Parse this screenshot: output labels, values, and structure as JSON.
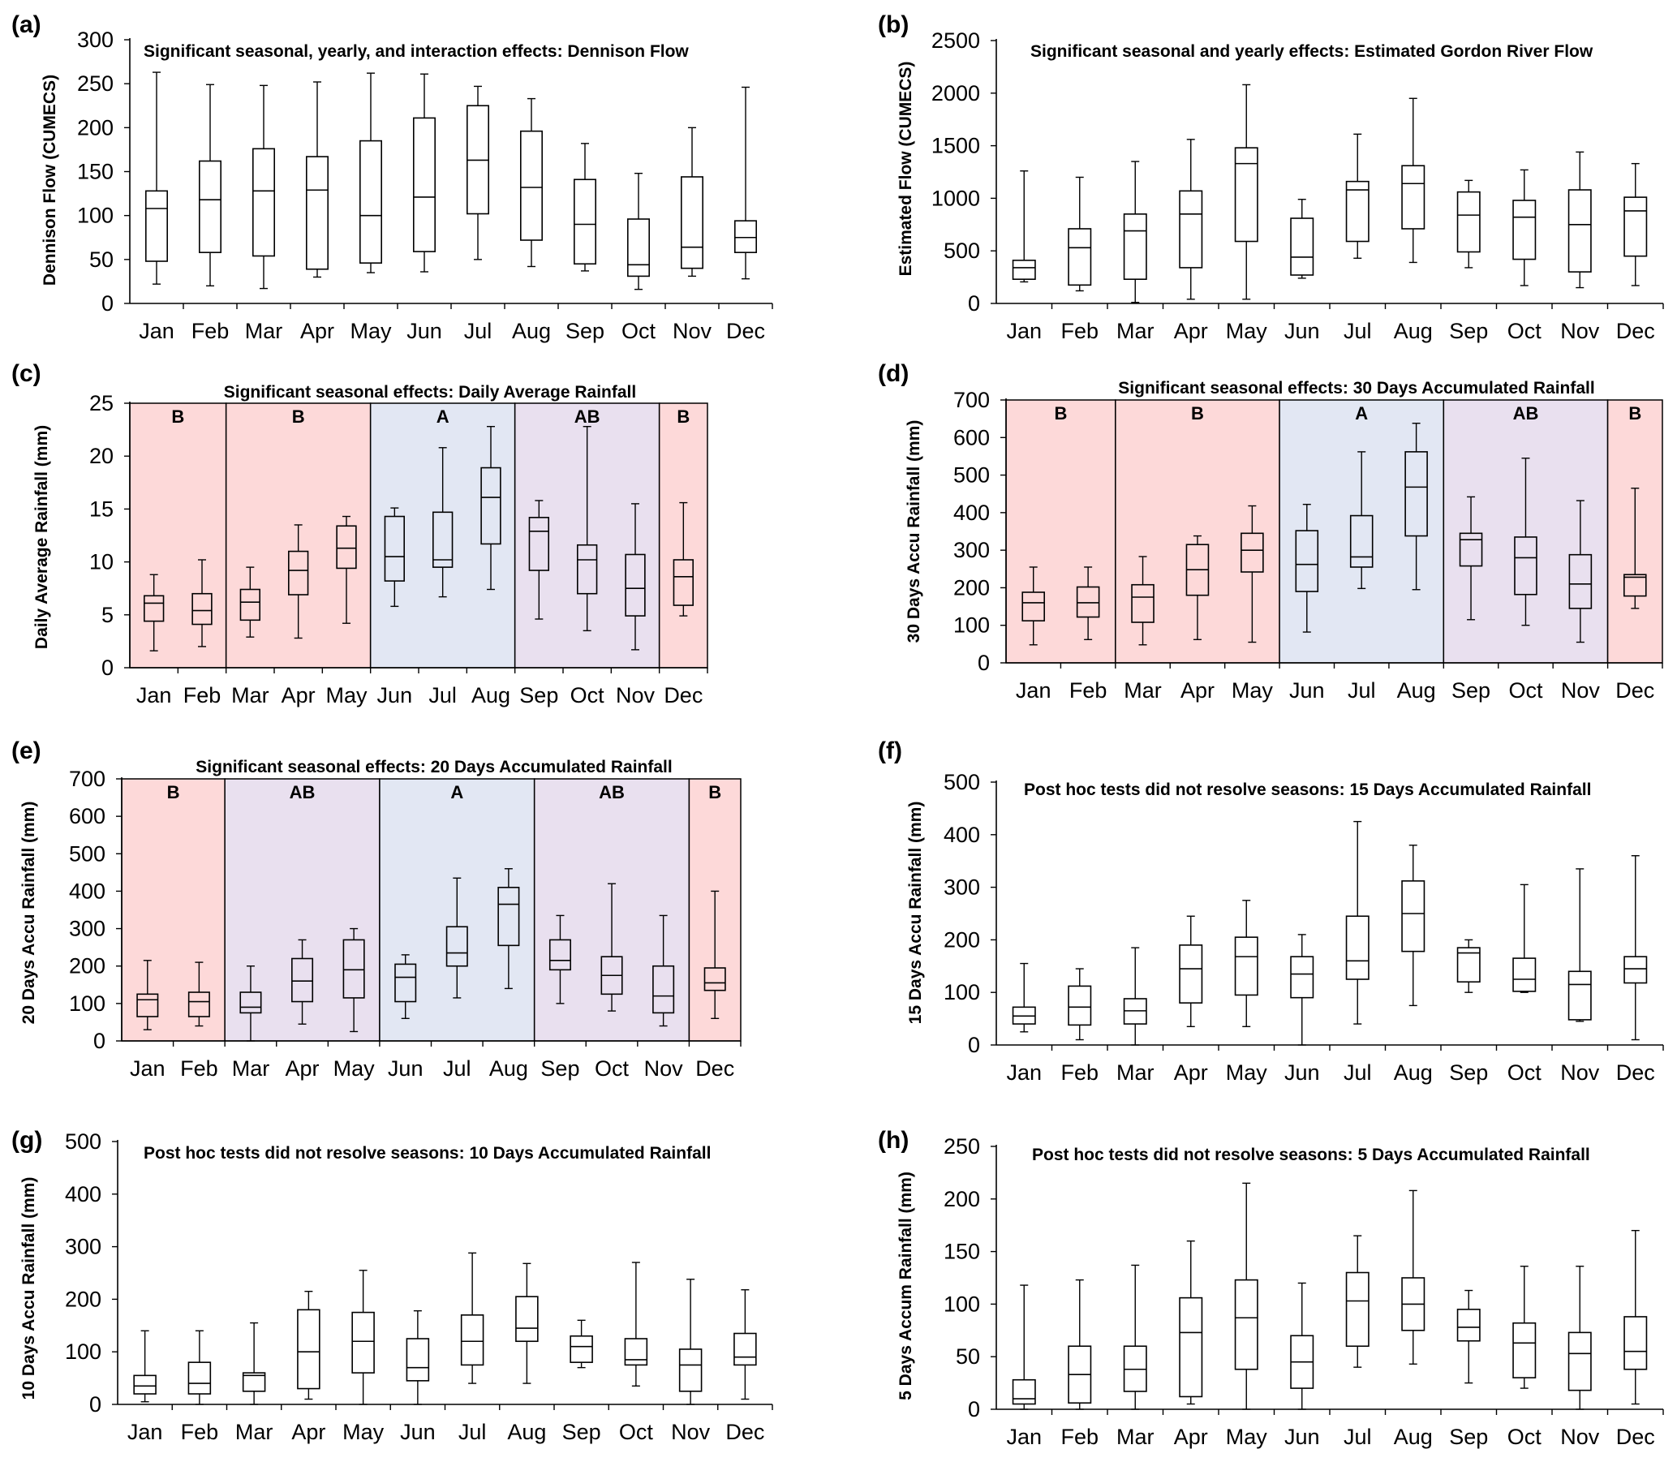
{
  "figure": {
    "background": "#ffffff"
  },
  "season_colors": {
    "red": "#fdd9d9",
    "blue": "#e2e7f3",
    "purple": "#e9e0ef"
  },
  "chart_data": [
    {
      "id": "a",
      "type": "box",
      "panel_letter": "(a)",
      "title": "Significant seasonal, yearly, and interaction effects: Dennison Flow",
      "ylabel": "Dennison Flow (CUMECS)",
      "ylim": [
        0,
        300
      ],
      "yticks": [
        "0",
        "50",
        "100",
        "150",
        "200",
        "250",
        "300"
      ],
      "categories": [
        "Jan",
        "Feb",
        "Mar",
        "Apr",
        "May",
        "Jun",
        "Jul",
        "Aug",
        "Sep",
        "Oct",
        "Nov",
        "Dec"
      ],
      "boxes": [
        [
          22,
          48,
          108,
          128,
          263
        ],
        [
          20,
          58,
          118,
          162,
          249
        ],
        [
          17,
          54,
          128,
          176,
          248
        ],
        [
          30,
          39,
          129,
          167,
          252
        ],
        [
          35,
          46,
          100,
          185,
          262
        ],
        [
          36,
          59,
          121,
          211,
          261
        ],
        [
          50,
          102,
          163,
          225,
          247
        ],
        [
          42,
          72,
          132,
          196,
          233
        ],
        [
          37,
          45,
          90,
          141,
          182
        ],
        [
          16,
          31,
          44,
          96,
          148
        ],
        [
          31,
          40,
          64,
          144,
          200
        ],
        [
          28,
          58,
          75,
          94,
          246
        ]
      ],
      "seasons": []
    },
    {
      "id": "b",
      "type": "box",
      "panel_letter": "(b)",
      "title": "Significant seasonal and yearly effects: Estimated Gordon River Flow",
      "ylabel": "Estimated Flow (CUMECS)",
      "ylim": [
        0,
        2500
      ],
      "yticks": [
        "0",
        "500",
        "1000",
        "1500",
        "2000",
        "2500"
      ],
      "categories": [
        "Jan",
        "Feb",
        "Mar",
        "Apr",
        "May",
        "Jun",
        "Jul",
        "Aug",
        "Sep",
        "Oct",
        "Nov",
        "Dec"
      ],
      "boxes": [
        [
          205,
          230,
          340,
          410,
          1260
        ],
        [
          120,
          175,
          530,
          710,
          1200
        ],
        [
          10,
          230,
          690,
          850,
          1350
        ],
        [
          40,
          340,
          850,
          1070,
          1560
        ],
        [
          40,
          590,
          1330,
          1480,
          2080
        ],
        [
          240,
          270,
          440,
          810,
          990
        ],
        [
          430,
          590,
          1080,
          1160,
          1610
        ],
        [
          390,
          710,
          1140,
          1310,
          1950
        ],
        [
          340,
          490,
          840,
          1060,
          1170
        ],
        [
          170,
          420,
          820,
          980,
          1270
        ],
        [
          150,
          300,
          750,
          1080,
          1440
        ],
        [
          170,
          450,
          880,
          1010,
          1330
        ]
      ],
      "seasons": []
    },
    {
      "id": "c",
      "type": "box",
      "panel_letter": "(c)",
      "title": "Significant seasonal effects: Daily Average Rainfall",
      "ylabel": "Daily Average Rainfall (mm)",
      "ylim": [
        0,
        25
      ],
      "yticks": [
        "0",
        "5",
        "10",
        "15",
        "20",
        "25"
      ],
      "categories": [
        "Jan",
        "Feb",
        "Mar",
        "Apr",
        "May",
        "Jun",
        "Jul",
        "Aug",
        "Sep",
        "Oct",
        "Nov",
        "Dec"
      ],
      "boxes": [
        [
          1.6,
          4.4,
          6.1,
          6.8,
          8.8
        ],
        [
          2.0,
          4.1,
          5.4,
          7.0,
          10.2
        ],
        [
          2.9,
          4.5,
          6.2,
          7.4,
          9.5
        ],
        [
          2.8,
          6.9,
          9.2,
          11.0,
          13.5
        ],
        [
          4.2,
          9.4,
          11.3,
          13.4,
          14.3
        ],
        [
          5.8,
          8.2,
          10.5,
          14.3,
          15.1
        ],
        [
          6.7,
          9.5,
          10.2,
          14.7,
          20.8
        ],
        [
          7.4,
          11.7,
          16.1,
          18.9,
          22.8
        ],
        [
          4.6,
          9.2,
          12.9,
          14.2,
          15.8
        ],
        [
          3.5,
          7.0,
          10.2,
          11.6,
          22.8
        ],
        [
          1.7,
          4.9,
          7.5,
          10.7,
          15.5
        ],
        [
          4.9,
          5.9,
          8.6,
          10.2,
          15.6
        ]
      ],
      "seasons": [
        {
          "start": 0,
          "end": 2,
          "label": "B",
          "color": "red"
        },
        {
          "start": 2,
          "end": 5,
          "label": "B",
          "color": "red"
        },
        {
          "start": 5,
          "end": 8,
          "label": "A",
          "color": "blue"
        },
        {
          "start": 8,
          "end": 11,
          "label": "AB",
          "color": "purple"
        },
        {
          "start": 11,
          "end": 12,
          "label": "B",
          "color": "red"
        }
      ]
    },
    {
      "id": "d",
      "type": "box",
      "panel_letter": "(d)",
      "title": "Significant seasonal effects: 30 Days Accumulated Rainfall",
      "ylabel": "30 Days Accu Rainfall (mm)",
      "ylim": [
        0,
        700
      ],
      "yticks": [
        "0",
        "100",
        "200",
        "300",
        "400",
        "500",
        "600",
        "700"
      ],
      "categories": [
        "Jan",
        "Feb",
        "Mar",
        "Apr",
        "May",
        "Jun",
        "Jul",
        "Aug",
        "Sep",
        "Oct",
        "Nov",
        "Dec"
      ],
      "boxes": [
        [
          48,
          112,
          160,
          188,
          255
        ],
        [
          62,
          122,
          160,
          202,
          255
        ],
        [
          48,
          108,
          175,
          208,
          283
        ],
        [
          62,
          180,
          248,
          315,
          338
        ],
        [
          55,
          242,
          300,
          345,
          418
        ],
        [
          82,
          190,
          262,
          352,
          422
        ],
        [
          198,
          255,
          282,
          392,
          562
        ],
        [
          195,
          338,
          468,
          562,
          638
        ],
        [
          115,
          258,
          328,
          345,
          442
        ],
        [
          100,
          182,
          280,
          335,
          545
        ],
        [
          55,
          145,
          210,
          288,
          432
        ],
        [
          145,
          178,
          228,
          235,
          465
        ]
      ],
      "seasons": [
        {
          "start": 0,
          "end": 2,
          "label": "B",
          "color": "red"
        },
        {
          "start": 2,
          "end": 5,
          "label": "B",
          "color": "red"
        },
        {
          "start": 5,
          "end": 8,
          "label": "A",
          "color": "blue"
        },
        {
          "start": 8,
          "end": 11,
          "label": "AB",
          "color": "purple"
        },
        {
          "start": 11,
          "end": 12,
          "label": "B",
          "color": "red"
        }
      ]
    },
    {
      "id": "e",
      "type": "box",
      "panel_letter": "(e)",
      "title": "Significant seasonal effects: 20 Days Accumulated Rainfall",
      "ylabel": "20 Days Accu Rainfall (mm)",
      "ylim": [
        0,
        700
      ],
      "yticks": [
        "0",
        "100",
        "200",
        "300",
        "400",
        "500",
        "600",
        "700"
      ],
      "categories": [
        "Jan",
        "Feb",
        "Mar",
        "Apr",
        "May",
        "Jun",
        "Jul",
        "Aug",
        "Sep",
        "Oct",
        "Nov",
        "Dec"
      ],
      "boxes": [
        [
          30,
          65,
          110,
          125,
          215
        ],
        [
          40,
          65,
          105,
          130,
          210
        ],
        [
          0,
          75,
          90,
          130,
          200
        ],
        [
          45,
          105,
          160,
          220,
          270
        ],
        [
          25,
          115,
          190,
          270,
          300
        ],
        [
          60,
          105,
          170,
          205,
          230
        ],
        [
          115,
          200,
          235,
          305,
          435
        ],
        [
          140,
          255,
          365,
          410,
          460
        ],
        [
          100,
          190,
          215,
          270,
          335
        ],
        [
          80,
          125,
          175,
          225,
          420
        ],
        [
          40,
          75,
          120,
          200,
          335
        ],
        [
          60,
          135,
          155,
          195,
          400
        ]
      ],
      "seasons": [
        {
          "start": 0,
          "end": 2,
          "label": "B",
          "color": "red"
        },
        {
          "start": 2,
          "end": 5,
          "label": "AB",
          "color": "purple"
        },
        {
          "start": 5,
          "end": 8,
          "label": "A",
          "color": "blue"
        },
        {
          "start": 8,
          "end": 11,
          "label": "AB",
          "color": "purple"
        },
        {
          "start": 11,
          "end": 12,
          "label": "B",
          "color": "red"
        }
      ]
    },
    {
      "id": "f",
      "type": "box",
      "panel_letter": "(f)",
      "title": "Post hoc tests did not resolve seasons: 15 Days Accumulated Rainfall",
      "ylabel": "15 Days Accu Rainfall (mm)",
      "ylim": [
        0,
        500
      ],
      "yticks": [
        "0",
        "100",
        "200",
        "300",
        "400",
        "500"
      ],
      "categories": [
        "Jan",
        "Feb",
        "Mar",
        "Apr",
        "May",
        "Jun",
        "Jul",
        "Aug",
        "Sep",
        "Oct",
        "Nov",
        "Dec"
      ],
      "boxes": [
        [
          25,
          40,
          55,
          72,
          155
        ],
        [
          10,
          38,
          72,
          112,
          145
        ],
        [
          0,
          40,
          65,
          88,
          185
        ],
        [
          35,
          80,
          145,
          190,
          245
        ],
        [
          35,
          95,
          168,
          205,
          275
        ],
        [
          0,
          90,
          135,
          168,
          210
        ],
        [
          40,
          125,
          160,
          245,
          425
        ],
        [
          75,
          178,
          250,
          312,
          380
        ],
        [
          100,
          120,
          175,
          185,
          200
        ],
        [
          100,
          102,
          125,
          165,
          305
        ],
        [
          45,
          48,
          115,
          140,
          335
        ],
        [
          10,
          118,
          145,
          168,
          360
        ]
      ],
      "seasons": []
    },
    {
      "id": "g",
      "type": "box",
      "panel_letter": "(g)",
      "title": "Post hoc tests did not resolve seasons: 10 Days Accumulated Rainfall",
      "ylabel": "10 Days Accu Rainfall (mm)",
      "ylim": [
        0,
        500
      ],
      "yticks": [
        "0",
        "100",
        "200",
        "300",
        "400",
        "500"
      ],
      "categories": [
        "Jan",
        "Feb",
        "Mar",
        "Apr",
        "May",
        "Jun",
        "Jul",
        "Aug",
        "Sep",
        "Oct",
        "Nov",
        "Dec"
      ],
      "boxes": [
        [
          5,
          20,
          35,
          55,
          140
        ],
        [
          0,
          20,
          40,
          80,
          140
        ],
        [
          0,
          25,
          55,
          60,
          155
        ],
        [
          10,
          30,
          100,
          180,
          215
        ],
        [
          0,
          60,
          120,
          175,
          255
        ],
        [
          0,
          45,
          70,
          125,
          178
        ],
        [
          40,
          75,
          120,
          170,
          288
        ],
        [
          40,
          120,
          145,
          205,
          268
        ],
        [
          70,
          80,
          110,
          130,
          160
        ],
        [
          35,
          75,
          85,
          125,
          270
        ],
        [
          0,
          25,
          75,
          105,
          238
        ],
        [
          10,
          75,
          90,
          135,
          218
        ]
      ],
      "seasons": []
    },
    {
      "id": "h",
      "type": "box",
      "panel_letter": "(h)",
      "title": "Post hoc tests did not resolve seasons: 5 Days Accumulated Rainfall",
      "ylabel": "5 Days Accum Rainfall (mm)",
      "ylim": [
        0,
        250
      ],
      "yticks": [
        "0",
        "50",
        "100",
        "150",
        "200",
        "250"
      ],
      "categories": [
        "Jan",
        "Feb",
        "Mar",
        "Apr",
        "May",
        "Jun",
        "Jul",
        "Aug",
        "Sep",
        "Oct",
        "Nov",
        "Dec"
      ],
      "boxes": [
        [
          0,
          5,
          10,
          28,
          118
        ],
        [
          0,
          6,
          33,
          60,
          123
        ],
        [
          0,
          17,
          38,
          60,
          137
        ],
        [
          5,
          12,
          73,
          106,
          160
        ],
        [
          0,
          38,
          87,
          123,
          215
        ],
        [
          0,
          20,
          45,
          70,
          120
        ],
        [
          40,
          60,
          103,
          130,
          165
        ],
        [
          43,
          75,
          100,
          125,
          208
        ],
        [
          25,
          65,
          78,
          95,
          113
        ],
        [
          20,
          30,
          63,
          82,
          136
        ],
        [
          0,
          18,
          53,
          73,
          136
        ],
        [
          5,
          38,
          55,
          88,
          170
        ]
      ],
      "seasons": []
    }
  ]
}
